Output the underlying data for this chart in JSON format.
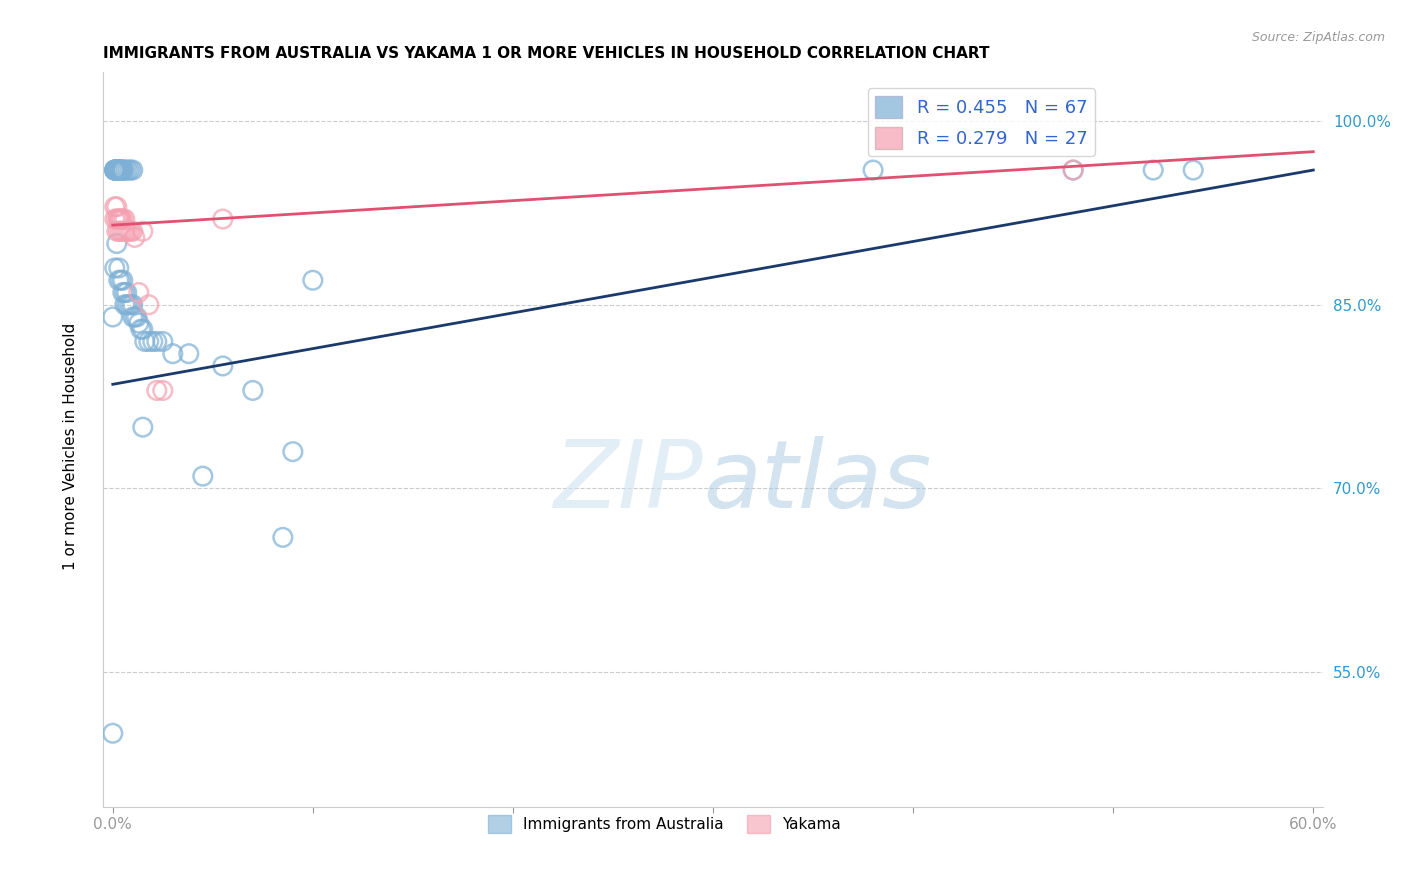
{
  "title": "IMMIGRANTS FROM AUSTRALIA VS YAKAMA 1 OR MORE VEHICLES IN HOUSEHOLD CORRELATION CHART",
  "source": "Source: ZipAtlas.com",
  "ylabel": "1 or more Vehicles in Household",
  "legend_label1": "Immigrants from Australia",
  "legend_label2": "Yakama",
  "r1": 0.455,
  "n1": 67,
  "r2": 0.279,
  "n2": 27,
  "color_blue": "#7EB0D5",
  "color_pink": "#F4A0B0",
  "line_color_blue": "#1A3A6B",
  "line_color_pink": "#E05070",
  "ytick_labels": [
    "100.0%",
    "85.0%",
    "70.0%",
    "55.0%"
  ],
  "ytick_values": [
    1.0,
    0.85,
    0.7,
    0.55
  ],
  "xmin": 0.0,
  "xmax": 0.6,
  "ymin": 0.44,
  "ymax": 1.04,
  "blue_x": [
    0.0,
    0.0,
    0.001,
    0.001,
    0.001,
    0.001,
    0.001,
    0.001,
    0.002,
    0.002,
    0.002,
    0.002,
    0.002,
    0.002,
    0.002,
    0.003,
    0.003,
    0.003,
    0.003,
    0.003,
    0.003,
    0.003,
    0.004,
    0.004,
    0.004,
    0.004,
    0.005,
    0.005,
    0.005,
    0.005,
    0.005,
    0.006,
    0.006,
    0.006,
    0.007,
    0.007,
    0.007,
    0.008,
    0.008,
    0.009,
    0.009,
    0.01,
    0.01,
    0.01,
    0.011,
    0.012,
    0.013,
    0.014,
    0.015,
    0.015,
    0.016,
    0.018,
    0.02,
    0.022,
    0.025,
    0.03,
    0.038,
    0.045,
    0.055,
    0.07,
    0.085,
    0.09,
    0.1,
    0.38,
    0.48,
    0.52,
    0.54
  ],
  "blue_y": [
    0.84,
    0.5,
    0.96,
    0.96,
    0.96,
    0.96,
    0.96,
    0.88,
    0.96,
    0.96,
    0.96,
    0.96,
    0.96,
    0.96,
    0.9,
    0.96,
    0.96,
    0.96,
    0.96,
    0.96,
    0.88,
    0.87,
    0.96,
    0.96,
    0.96,
    0.87,
    0.96,
    0.96,
    0.96,
    0.87,
    0.86,
    0.96,
    0.86,
    0.85,
    0.96,
    0.86,
    0.85,
    0.96,
    0.85,
    0.96,
    0.85,
    0.96,
    0.85,
    0.84,
    0.84,
    0.84,
    0.835,
    0.83,
    0.83,
    0.75,
    0.82,
    0.82,
    0.82,
    0.82,
    0.82,
    0.81,
    0.81,
    0.71,
    0.8,
    0.78,
    0.66,
    0.73,
    0.87,
    0.96,
    0.96,
    0.96,
    0.96
  ],
  "pink_x": [
    0.001,
    0.001,
    0.002,
    0.002,
    0.002,
    0.003,
    0.003,
    0.003,
    0.004,
    0.004,
    0.004,
    0.005,
    0.005,
    0.006,
    0.006,
    0.007,
    0.008,
    0.009,
    0.01,
    0.011,
    0.013,
    0.015,
    0.018,
    0.022,
    0.025,
    0.055,
    0.48
  ],
  "pink_y": [
    0.93,
    0.92,
    0.93,
    0.92,
    0.91,
    0.92,
    0.92,
    0.91,
    0.92,
    0.92,
    0.91,
    0.92,
    0.91,
    0.92,
    0.91,
    0.91,
    0.91,
    0.91,
    0.91,
    0.905,
    0.86,
    0.91,
    0.85,
    0.78,
    0.78,
    0.92,
    0.96
  ],
  "line_blue_x0": 0.0,
  "line_blue_x1": 0.6,
  "line_blue_y0": 0.785,
  "line_blue_y1": 0.96,
  "line_pink_x0": 0.0,
  "line_pink_x1": 0.6,
  "line_pink_y0": 0.915,
  "line_pink_y1": 0.975
}
